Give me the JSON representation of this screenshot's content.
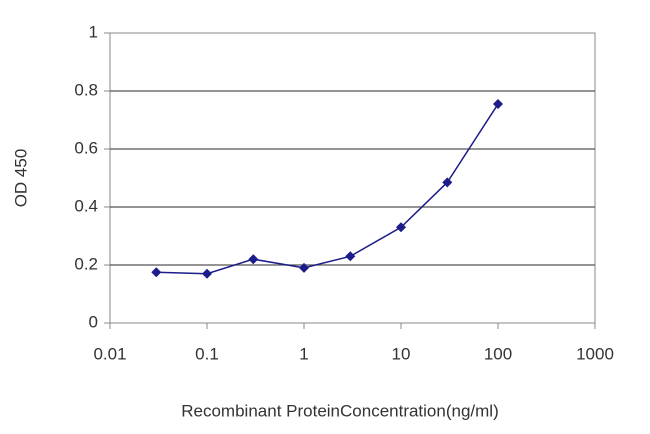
{
  "chart_data": {
    "type": "line",
    "x_label": "Recombinant ProteinConcentration(ng/ml)",
    "y_label": "OD 450",
    "x": [
      0.03,
      0.1,
      0.3,
      1,
      3,
      10,
      30,
      100
    ],
    "values": [
      0.175,
      0.17,
      0.22,
      0.19,
      0.23,
      0.33,
      0.485,
      0.755
    ],
    "color": "#1c1c8a",
    "x_log": true,
    "xlim": [
      0.01,
      1000
    ],
    "xticks": [
      0.01,
      0.1,
      1,
      10,
      100,
      1000
    ],
    "ylim": [
      0,
      1
    ],
    "yticks": [
      0,
      0.2,
      0.4,
      0.6,
      0.8,
      1
    ],
    "grid": true
  }
}
